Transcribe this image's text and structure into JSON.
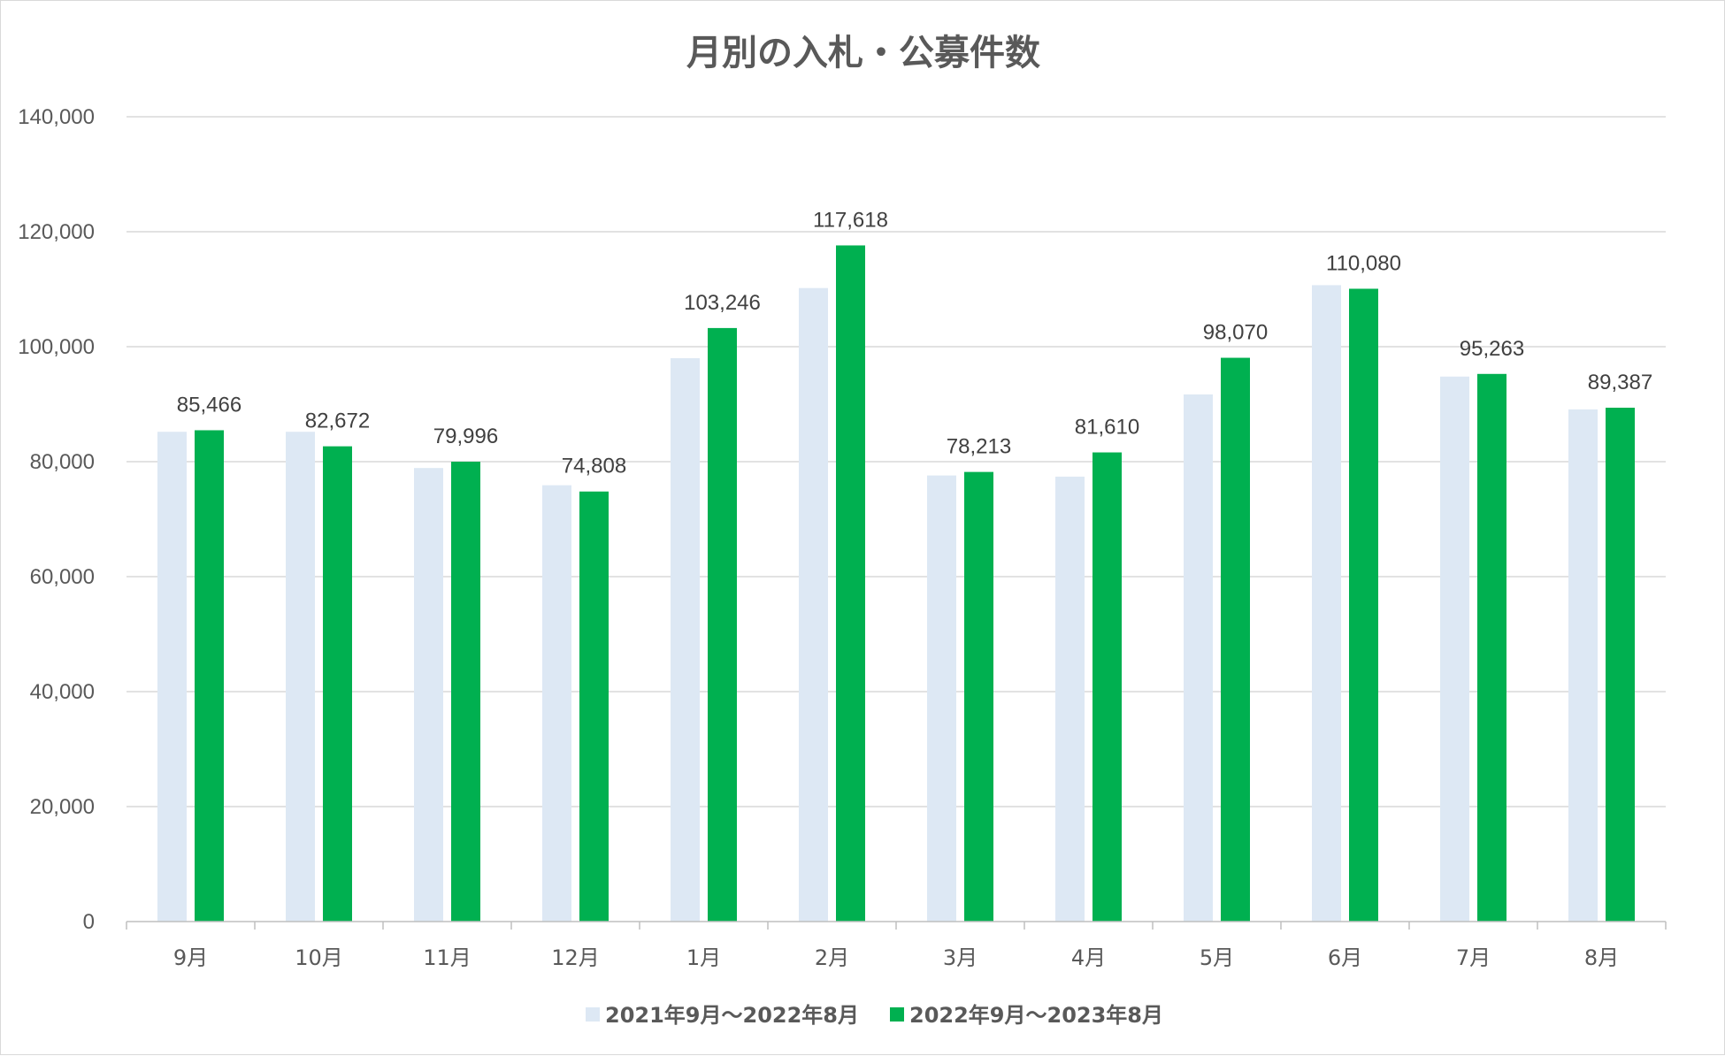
{
  "chart_data": {
    "type": "bar",
    "title": "月別の入札・公募件数",
    "xlabel": "",
    "ylabel": "",
    "categories": [
      "9月",
      "10月",
      "11月",
      "12月",
      "1月",
      "2月",
      "3月",
      "4月",
      "5月",
      "6月",
      "7月",
      "8月"
    ],
    "ylim": [
      0,
      140000
    ],
    "yticks": [
      0,
      20000,
      40000,
      60000,
      80000,
      100000,
      120000,
      140000
    ],
    "ytick_labels": [
      "0",
      "20,000",
      "40,000",
      "60,000",
      "80,000",
      "100,000",
      "120,000",
      "140,000"
    ],
    "grid": true,
    "legend_position": "bottom",
    "series": [
      {
        "name": "2021年9月～2022年8月",
        "color": "#dde8f4",
        "values": [
          85200,
          85200,
          78900,
          75900,
          98000,
          110200,
          77600,
          77400,
          91700,
          110700,
          94800,
          89100
        ],
        "data_labels": false
      },
      {
        "name": "2022年9月～2023年8月",
        "color": "#00b050",
        "values": [
          85466,
          82672,
          79996,
          74808,
          103246,
          117618,
          78213,
          81610,
          98070,
          110080,
          95263,
          89387
        ],
        "value_labels": [
          "85,466",
          "82,672",
          "79,996",
          "74,808",
          "103,246",
          "117,618",
          "78,213",
          "81,610",
          "98,070",
          "110,080",
          "95,263",
          "89,387"
        ],
        "data_labels": true
      }
    ]
  }
}
